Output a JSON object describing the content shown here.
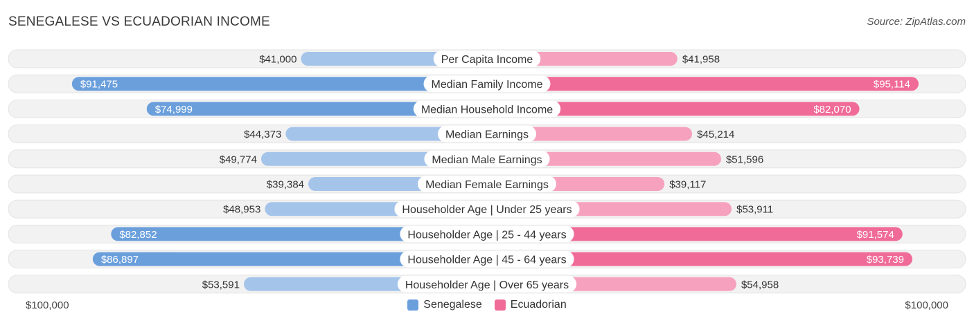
{
  "title": "SENEGALESE VS ECUADORIAN INCOME",
  "source": "Source: ZipAtlas.com",
  "legend": {
    "senegalese": "Senegalese",
    "ecuadorian": "Ecuadorian"
  },
  "axis": {
    "left_label": "$100,000",
    "right_label": "$100,000"
  },
  "colors": {
    "senegalese_strong": "#6a9fdc",
    "senegalese_light": "#a5c4ea",
    "ecuadorian_strong": "#f06b97",
    "ecuadorian_light": "#f6a2bf",
    "row_background": "#f2f2f2"
  },
  "chart_data": {
    "type": "bar",
    "orientation": "horizontal-diverging",
    "xlim": [
      0,
      100000
    ],
    "categories": [
      "Per Capita Income",
      "Median Family Income",
      "Median Household Income",
      "Median Earnings",
      "Median Male Earnings",
      "Median Female Earnings",
      "Householder Age | Under 25 years",
      "Householder Age | 25 - 44 years",
      "Householder Age | 45 - 64 years",
      "Householder Age | Over 65 years"
    ],
    "series": [
      {
        "name": "Senegalese",
        "values": [
          41000,
          91475,
          74999,
          44373,
          49774,
          39384,
          48953,
          82852,
          86897,
          53591
        ],
        "labels": [
          "$41,000",
          "$91,475",
          "$74,999",
          "$44,373",
          "$49,774",
          "$39,384",
          "$48,953",
          "$82,852",
          "$86,897",
          "$53,591"
        ]
      },
      {
        "name": "Ecuadorian",
        "values": [
          41958,
          95114,
          82070,
          45214,
          51596,
          39117,
          53911,
          91574,
          93739,
          54958
        ],
        "labels": [
          "$41,958",
          "$95,114",
          "$82,070",
          "$45,214",
          "$51,596",
          "$39,117",
          "$53,911",
          "$91,574",
          "$93,739",
          "$54,958"
        ]
      }
    ]
  }
}
